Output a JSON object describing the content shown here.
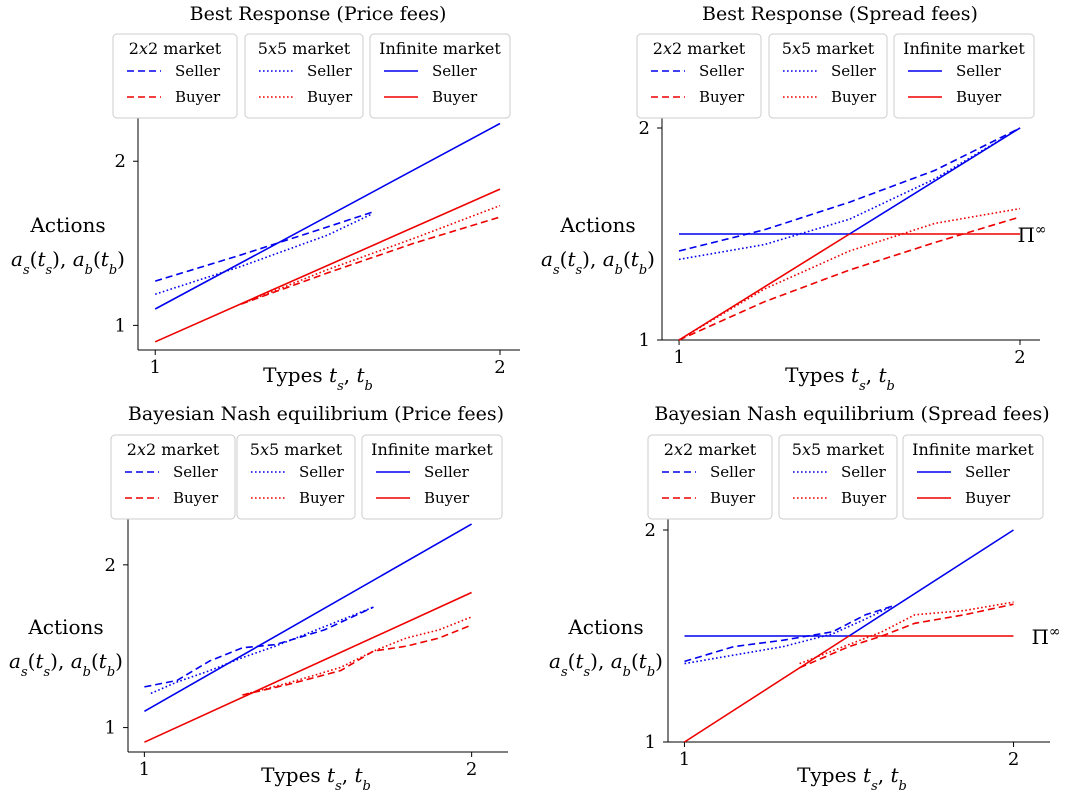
{
  "colors": {
    "seller": "#0000ee",
    "buyer": "#ee0000",
    "axis": "#000000",
    "legend_border": "#cccccc"
  },
  "chart_data": [
    {
      "id": "br-price",
      "type": "line",
      "title": "Best Response (Price fees)",
      "xlabel": "Types t_s, t_b",
      "ylabel_lines": [
        "Actions",
        "a_s(t_s), a_b(t_b)"
      ],
      "xlim": [
        0.95,
        2.0
      ],
      "ylim": [
        0.85,
        2.3
      ],
      "xticks": [
        1,
        2
      ],
      "yticks": [
        1,
        2
      ],
      "legend_position": "top",
      "legend_groups": [
        {
          "title": "2x2 market",
          "style": "dashed",
          "entries": [
            "Seller",
            "Buyer"
          ]
        },
        {
          "title": "5x5 market",
          "style": "dotted",
          "entries": [
            "Seller",
            "Buyer"
          ]
        },
        {
          "title": "Infinite market",
          "style": "solid",
          "entries": [
            "Seller",
            "Buyer"
          ]
        }
      ],
      "annotation": "",
      "series": [
        {
          "name": "Seller",
          "market": "Infinite market",
          "role": "seller",
          "style": "solid",
          "x": [
            1.0,
            2.0
          ],
          "y": [
            1.1,
            2.23
          ]
        },
        {
          "name": "Buyer",
          "market": "Infinite market",
          "role": "buyer",
          "style": "solid",
          "x": [
            1.0,
            2.0
          ],
          "y": [
            0.9,
            1.83
          ]
        },
        {
          "name": "Seller",
          "market": "2x2 market",
          "role": "seller",
          "style": "dashed",
          "x": [
            1.0,
            1.25,
            1.5,
            1.63
          ],
          "y": [
            1.27,
            1.43,
            1.6,
            1.69
          ]
        },
        {
          "name": "Seller",
          "market": "5x5 market",
          "role": "seller",
          "style": "dotted",
          "x": [
            1.0,
            1.25,
            1.5,
            1.63
          ],
          "y": [
            1.19,
            1.36,
            1.55,
            1.68
          ]
        },
        {
          "name": "Buyer",
          "market": "2x2 market",
          "role": "buyer",
          "style": "dashed",
          "x": [
            1.25,
            1.5,
            1.75,
            2.0
          ],
          "y": [
            1.13,
            1.32,
            1.5,
            1.66
          ]
        },
        {
          "name": "Buyer",
          "market": "5x5 market",
          "role": "buyer",
          "style": "dotted",
          "x": [
            1.25,
            1.5,
            1.75,
            2.0
          ],
          "y": [
            1.13,
            1.34,
            1.53,
            1.73
          ]
        }
      ]
    },
    {
      "id": "br-spread",
      "type": "line",
      "title": "Best Response (Spread fees)",
      "xlabel": "Types t_s, t_b",
      "ylabel_lines": [
        "Actions",
        "a_s(t_s), a_b(t_b)"
      ],
      "xlim": [
        0.95,
        2.0
      ],
      "ylim": [
        1.0,
        2.0
      ],
      "xticks": [
        1,
        2
      ],
      "yticks": [
        1,
        2
      ],
      "legend_position": "top",
      "legend_groups": [
        {
          "title": "2x2 market",
          "style": "dashed",
          "entries": [
            "Seller",
            "Buyer"
          ]
        },
        {
          "title": "5x5 market",
          "style": "dotted",
          "entries": [
            "Seller",
            "Buyer"
          ]
        },
        {
          "title": "Infinite market",
          "style": "solid",
          "entries": [
            "Seller",
            "Buyer"
          ]
        }
      ],
      "annotation": "Π∞",
      "annotation_y": 1.5,
      "series": [
        {
          "name": "Seller",
          "market": "Infinite market",
          "role": "seller",
          "style": "solid",
          "x": [
            1.0,
            1.5
          ],
          "y": [
            1.5,
            1.5
          ]
        },
        {
          "name": "Buyer",
          "market": "Infinite market",
          "role": "buyer",
          "style": "solid",
          "x": [
            1.5,
            2.0
          ],
          "y": [
            1.5,
            1.5
          ]
        },
        {
          "name": "Seller",
          "market": "Infinite market",
          "role": "seller",
          "style": "solid",
          "x": [
            1.5,
            2.0
          ],
          "y": [
            1.5,
            2.0
          ]
        },
        {
          "name": "Buyer",
          "market": "Infinite market",
          "role": "buyer",
          "style": "solid",
          "x": [
            1.0,
            1.5
          ],
          "y": [
            1.0,
            1.5
          ]
        },
        {
          "name": "Seller",
          "market": "2x2 market",
          "role": "seller",
          "style": "dashed",
          "x": [
            1.0,
            1.25,
            1.5,
            1.75,
            2.0
          ],
          "y": [
            1.42,
            1.52,
            1.65,
            1.8,
            2.0
          ]
        },
        {
          "name": "Seller",
          "market": "5x5 market",
          "role": "seller",
          "style": "dotted",
          "x": [
            1.0,
            1.25,
            1.5,
            1.75,
            2.0
          ],
          "y": [
            1.38,
            1.45,
            1.57,
            1.76,
            2.0
          ]
        },
        {
          "name": "Buyer",
          "market": "2x2 market",
          "role": "buyer",
          "style": "dashed",
          "x": [
            1.0,
            1.25,
            1.5,
            1.75,
            2.0
          ],
          "y": [
            1.0,
            1.18,
            1.33,
            1.46,
            1.58
          ]
        },
        {
          "name": "Buyer",
          "market": "5x5 market",
          "role": "buyer",
          "style": "dotted",
          "x": [
            1.0,
            1.25,
            1.5,
            1.75,
            2.0
          ],
          "y": [
            1.0,
            1.24,
            1.42,
            1.55,
            1.62
          ]
        }
      ]
    },
    {
      "id": "bne-price",
      "type": "line",
      "title": "Bayesian Nash equilibrium (Price fees)",
      "xlabel": "Types t_s, t_b",
      "ylabel_lines": [
        "Actions",
        "a_s(t_s), a_b(t_b)"
      ],
      "xlim": [
        0.95,
        2.05
      ],
      "ylim": [
        0.85,
        2.3
      ],
      "xticks": [
        1,
        2
      ],
      "yticks": [
        1,
        2
      ],
      "legend_position": "top",
      "legend_groups": [
        {
          "title": "2x2 market",
          "style": "dashed",
          "entries": [
            "Seller",
            "Buyer"
          ]
        },
        {
          "title": "5x5 market",
          "style": "dotted",
          "entries": [
            "Seller",
            "Buyer"
          ]
        },
        {
          "title": "Infinite market",
          "style": "solid",
          "entries": [
            "Seller",
            "Buyer"
          ]
        }
      ],
      "annotation": "",
      "series": [
        {
          "name": "Seller",
          "market": "Infinite market",
          "role": "seller",
          "style": "solid",
          "x": [
            1.0,
            2.0
          ],
          "y": [
            1.1,
            2.25
          ]
        },
        {
          "name": "Buyer",
          "market": "Infinite market",
          "role": "buyer",
          "style": "solid",
          "x": [
            1.0,
            2.0
          ],
          "y": [
            0.91,
            1.83
          ]
        },
        {
          "name": "Seller",
          "market": "2x2 market",
          "role": "seller",
          "style": "dashed",
          "x": [
            1.0,
            1.1,
            1.2,
            1.3,
            1.4,
            1.55,
            1.7
          ],
          "y": [
            1.25,
            1.29,
            1.41,
            1.49,
            1.51,
            1.6,
            1.74
          ]
        },
        {
          "name": "Seller",
          "market": "5x5 market",
          "role": "seller",
          "style": "dotted",
          "x": [
            1.02,
            1.1,
            1.2,
            1.3,
            1.4,
            1.55,
            1.7
          ],
          "y": [
            1.21,
            1.28,
            1.35,
            1.43,
            1.5,
            1.62,
            1.74
          ]
        },
        {
          "name": "Buyer",
          "market": "2x2 market",
          "role": "buyer",
          "style": "dashed",
          "x": [
            1.3,
            1.45,
            1.6,
            1.7,
            1.8,
            1.9,
            2.0
          ],
          "y": [
            1.2,
            1.27,
            1.35,
            1.47,
            1.5,
            1.55,
            1.63
          ]
        },
        {
          "name": "Buyer",
          "market": "5x5 market",
          "role": "buyer",
          "style": "dotted",
          "x": [
            1.3,
            1.45,
            1.6,
            1.7,
            1.8,
            1.9,
            2.0
          ],
          "y": [
            1.2,
            1.28,
            1.37,
            1.47,
            1.55,
            1.6,
            1.68
          ]
        }
      ]
    },
    {
      "id": "bne-spread",
      "type": "line",
      "title": "Bayesian Nash equilibrium (Spread fees)",
      "xlabel": "Types t_s, t_b",
      "ylabel_lines": [
        "Actions",
        "a_s(t_s), a_b(t_b)"
      ],
      "xlim": [
        0.95,
        2.05
      ],
      "ylim": [
        1.0,
        2.0
      ],
      "xticks": [
        1,
        2
      ],
      "yticks": [
        1,
        2
      ],
      "legend_position": "top",
      "legend_groups": [
        {
          "title": "2x2 market",
          "style": "dashed",
          "entries": [
            "Seller",
            "Buyer"
          ]
        },
        {
          "title": "5x5 market",
          "style": "dotted",
          "entries": [
            "Seller",
            "Buyer"
          ]
        },
        {
          "title": "Infinite market",
          "style": "solid",
          "entries": [
            "Seller",
            "Buyer"
          ]
        }
      ],
      "annotation": "Π∞",
      "annotation_y": 1.5,
      "series": [
        {
          "name": "Seller",
          "market": "Infinite market",
          "role": "seller",
          "style": "solid",
          "x": [
            1.0,
            1.5
          ],
          "y": [
            1.5,
            1.5
          ]
        },
        {
          "name": "Buyer",
          "market": "Infinite market",
          "role": "buyer",
          "style": "solid",
          "x": [
            1.5,
            2.0
          ],
          "y": [
            1.5,
            1.5
          ]
        },
        {
          "name": "Seller",
          "market": "Infinite market",
          "role": "seller",
          "style": "solid",
          "x": [
            1.5,
            2.0
          ],
          "y": [
            1.5,
            2.0
          ]
        },
        {
          "name": "Buyer",
          "market": "Infinite market",
          "role": "buyer",
          "style": "solid",
          "x": [
            1.0,
            1.5
          ],
          "y": [
            1.0,
            1.5
          ]
        },
        {
          "name": "Seller",
          "market": "2x2 market",
          "role": "seller",
          "style": "dashed",
          "x": [
            1.0,
            1.15,
            1.3,
            1.45,
            1.55,
            1.63
          ],
          "y": [
            1.38,
            1.45,
            1.48,
            1.52,
            1.6,
            1.64
          ]
        },
        {
          "name": "Seller",
          "market": "5x5 market",
          "role": "seller",
          "style": "dotted",
          "x": [
            1.0,
            1.15,
            1.3,
            1.45,
            1.55,
            1.63
          ],
          "y": [
            1.37,
            1.41,
            1.45,
            1.51,
            1.58,
            1.64
          ]
        },
        {
          "name": "Buyer",
          "market": "2x2 market",
          "role": "buyer",
          "style": "dashed",
          "x": [
            1.35,
            1.5,
            1.6,
            1.7,
            1.85,
            2.0
          ],
          "y": [
            1.35,
            1.45,
            1.5,
            1.56,
            1.6,
            1.65
          ]
        },
        {
          "name": "Buyer",
          "market": "5x5 market",
          "role": "buyer",
          "style": "dotted",
          "x": [
            1.35,
            1.5,
            1.6,
            1.7,
            1.85,
            2.0
          ],
          "y": [
            1.37,
            1.46,
            1.52,
            1.6,
            1.62,
            1.66
          ]
        }
      ]
    }
  ]
}
